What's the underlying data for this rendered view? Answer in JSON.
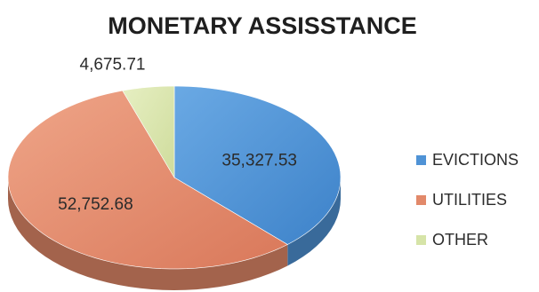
{
  "chart_data": {
    "type": "pie",
    "title": "MONETARY ASSISSTANCE",
    "categories": [
      "EVICTIONS",
      "UTILITIES",
      "OTHER"
    ],
    "values": [
      35327.53,
      52752.68,
      4675.71
    ],
    "data_labels": [
      "35,327.53",
      "52,752.68",
      "4,675.71"
    ],
    "colors": [
      "#4f93d6",
      "#e2896a",
      "#d6e4a8"
    ],
    "style": "3d",
    "legend": {
      "position": "right",
      "entries": [
        "EVICTIONS",
        "UTILITIES",
        "OTHER"
      ]
    }
  }
}
